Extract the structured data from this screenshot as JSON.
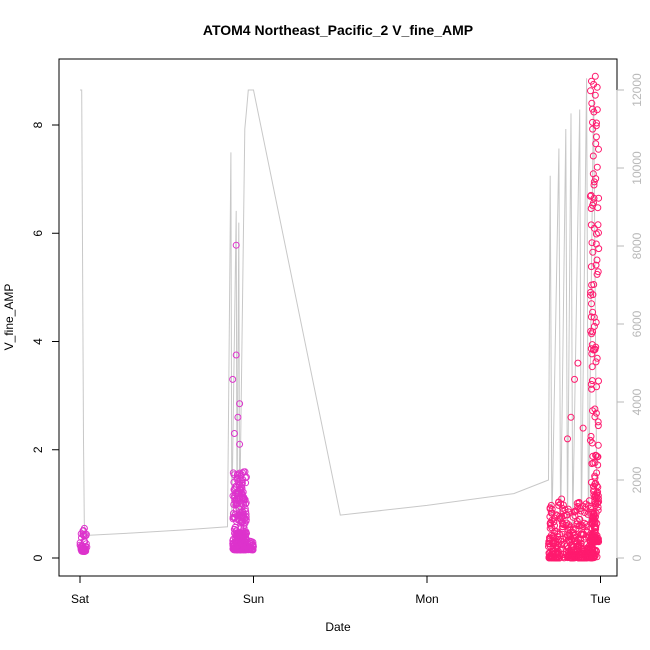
{
  "chart_data": {
    "type": "scatter",
    "title": "ATOM4 Northeast_Pacific_2 V_fine_AMP",
    "xlabel": "Date",
    "ylabel": "V_fine_AMP",
    "x_ticks": [
      {
        "label": "Sat",
        "value": 0
      },
      {
        "label": "Sun",
        "value": 1
      },
      {
        "label": "Mon",
        "value": 2
      },
      {
        "label": "Tue",
        "value": 3
      }
    ],
    "y_left": {
      "lim": [
        0,
        9
      ],
      "ticks": [
        0,
        2,
        4,
        6,
        8
      ]
    },
    "y_right": {
      "lim": [
        0,
        12500
      ],
      "ticks": [
        0,
        2000,
        4000,
        6000,
        8000,
        10000,
        12000
      ]
    },
    "x_lim": [
      -0.02,
      3.05
    ],
    "colors": {
      "points_early": "#dd33cc",
      "points_late": "#ff1a6e",
      "line": "#c8c8c8",
      "axis": "#000000",
      "right_axis": "#b8b8b8"
    },
    "series": [
      {
        "axis": "left",
        "clusters": [
          {
            "x_range": [
              0.0,
              0.04
            ],
            "y_range": [
              0.12,
              0.55
            ],
            "count": 45,
            "outliers": []
          },
          {
            "x_range": [
              0.88,
              0.96
            ],
            "y_range": [
              0.15,
              1.6
            ],
            "count": 260,
            "outliers": [
              [
                0.9,
                5.78
              ],
              [
                0.9,
                3.75
              ],
              [
                0.88,
                3.3
              ],
              [
                0.92,
                2.85
              ],
              [
                0.91,
                2.6
              ],
              [
                0.89,
                2.3
              ],
              [
                0.92,
                2.1
              ]
            ]
          },
          {
            "x_range": [
              0.96,
              1.0
            ],
            "y_range": [
              0.15,
              0.32
            ],
            "count": 30,
            "outliers": []
          },
          {
            "x_range": [
              2.7,
              2.98
            ],
            "y_range": [
              0.0,
              1.1
            ],
            "count": 380,
            "outliers": [
              [
                2.87,
                3.6
              ],
              [
                2.85,
                3.3
              ],
              [
                2.83,
                2.6
              ],
              [
                2.9,
                2.4
              ],
              [
                2.81,
                2.2
              ]
            ]
          },
          {
            "x_range": [
              2.94,
              2.99
            ],
            "y_range": [
              0.3,
              8.9
            ],
            "count": 170,
            "outliers": [
              [
                2.97,
                8.9
              ],
              [
                2.96,
                8.75
              ],
              [
                2.97,
                8.55
              ],
              [
                2.95,
                8.4
              ]
            ]
          }
        ]
      },
      {
        "axis": "right",
        "points": [
          [
            0.0,
            12000
          ],
          [
            0.01,
            12000
          ],
          [
            0.02,
            3000
          ],
          [
            0.025,
            900
          ],
          [
            0.03,
            600
          ],
          [
            0.04,
            580
          ],
          [
            0.3,
            640
          ],
          [
            0.6,
            720
          ],
          [
            0.85,
            800
          ],
          [
            0.87,
            10400
          ],
          [
            0.875,
            1000
          ],
          [
            0.9,
            8900
          ],
          [
            0.905,
            900
          ],
          [
            0.915,
            8600
          ],
          [
            0.92,
            900
          ],
          [
            0.95,
            11000
          ],
          [
            0.96,
            11500
          ],
          [
            0.97,
            12000
          ],
          [
            1.0,
            12000
          ],
          [
            1.5,
            1100
          ],
          [
            2.0,
            1350
          ],
          [
            2.5,
            1650
          ],
          [
            2.7,
            2000
          ],
          [
            2.71,
            9800
          ],
          [
            2.72,
            800
          ],
          [
            2.76,
            10500
          ],
          [
            2.77,
            800
          ],
          [
            2.8,
            11000
          ],
          [
            2.81,
            800
          ],
          [
            2.83,
            11400
          ],
          [
            2.84,
            800
          ],
          [
            2.88,
            11500
          ],
          [
            2.89,
            800
          ],
          [
            2.92,
            12300
          ],
          [
            2.93,
            800
          ],
          [
            2.96,
            12000
          ],
          [
            2.98,
            800
          ]
        ]
      }
    ]
  }
}
